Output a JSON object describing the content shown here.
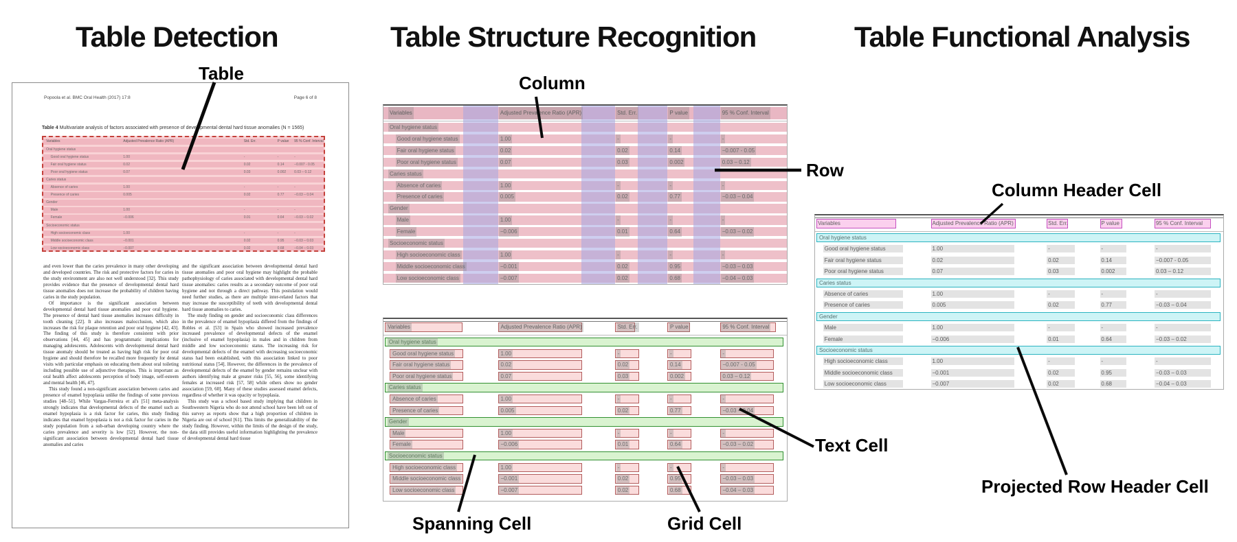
{
  "titles": {
    "detection": "Table Detection",
    "structure": "Table Structure Recognition",
    "functional": "Table Functional Analysis"
  },
  "callouts": {
    "table": "Table",
    "column": "Column",
    "row": "Row",
    "spanning_cell": "Spanning Cell",
    "text_cell": "Text Cell",
    "grid_cell": "Grid Cell",
    "column_header_cell": "Column Header Cell",
    "projected_row_header_cell": "Projected Row Header Cell"
  },
  "document": {
    "header_left": "Popoola et al. BMC Oral Health  (2017) 17:8",
    "header_right": "Page 6 of 8",
    "body_col1": [
      "and even lower than the caries prevalence in many other developing and developed countries. The risk and protective factors for caries in the study environment are also not well understood [32]. This study provides evidence that the presence of developmental dental hard tissue anomalies does not increase the probability of children having caries in the study population.",
      "Of importance is the significant association between developmental dental hard tissue anomalies and poor oral hygiene. The presence of dental hard tissue anomalies increases difficulty in tooth cleaning [22]. It also increases malocclusion, which also increases the risk for plaque retention and poor oral hygiene [42, 43]. The finding of this study is therefore consistent with prior observations [44, 45] and has programmatic implications for managing adolescents. Adolescents with developmental dental hard tissue anomaly should be treated as having high risk for poor oral hygiene and should therefore be recalled more frequently for dental visits with particular emphasis on educating them about oral toileting including possible use of adjunctive therapies. This is important as oral health affect adolescents perception of body image, self-esteem and mental health [46, 47].",
      "This study found a non-significant association between caries and presence of enamel hypoplasia unlike the findings of some previous studies [48–51]. While Vargas-Ferreira et al's [51] meta-analysis strongly indicates that developmental defects of the enamel such as enamel hypoplasia is a risk factor for caries, this study finding indicates that enamel hypoplasia is not a risk factor for caries in the study population from a sub-urban developing country where the caries prevalence and severity is low [52]. However, the non-significant association between developmental dental hard tissue anomalies and caries"
    ],
    "body_col2": [
      "and the significant association between developmental dental hard tissue anomalies and poor oral hygiene may highlight the probable pathophysiology of caries associated with developmental dental hard tissue anomalies: caries results as a secondary outcome of poor oral hygiene and not through a direct pathway. This postulation would need further studies, as there are multiple inter-related factors that may increase the susceptibility of teeth with developmental dental hard tissue anomalies to caries.",
      "The study finding on gender and socioeconomic class differences in the prevalence of enamel hypoplasia differed from the findings of Robles et al. [53] in Spain who showed increased prevalence increased prevalence of developmental defects of the enamel (inclusive of enamel hypoplasia) in males and in children from middle and low socioeconomic status. The increasing risk for developmental defects of the enamel with decreasing socioeconomic status had been established, with this association linked to poor nutritional status [54]. However, the differences in the prevalence of developmental defects of the enamel by gender remains unclear with authors identifying male at greater risks [55, 56], some identifying females at increased risk [57, 58] while others show no gender association [59, 60]. Many of these studies assessed enamel defects, regardless of whether it was opacity or hypoplasia.",
      "This study was a school based study implying that children in Southwestern Nigeria who do not attend school have been left out of this survey as reports show that a high proportion of children in Nigeria are out of school [61]. This limits the generalizability of the study finding. However, within the limits of the design of the study, the data still provides useful information highlighting the prevalence of developmental dental hard tissue"
    ]
  },
  "table": {
    "caption_label": "Table 4",
    "caption_text": "Multivariate analysis of factors associated with presence of developmental dental hard tissue anomalies (N = 1565)",
    "headers": [
      "Variables",
      "Adjusted Prevalence Ratio (APR)",
      "Std. Err.",
      "P value",
      "95 % Conf. Interval"
    ],
    "rows": [
      {
        "type": "section",
        "cells": [
          "Oral hygiene status"
        ]
      },
      {
        "type": "data",
        "cells": [
          "Good oral hygiene status",
          "1.00",
          "-",
          "-",
          "-"
        ]
      },
      {
        "type": "data",
        "cells": [
          "Fair oral hygiene status",
          "0.02",
          "0.02",
          "0.14",
          "−0.007 - 0.05"
        ]
      },
      {
        "type": "data",
        "cells": [
          "Poor oral hygiene status",
          "0.07",
          "0.03",
          "0.002",
          "0.03 – 0.12"
        ]
      },
      {
        "type": "section",
        "cells": [
          "Caries status"
        ]
      },
      {
        "type": "data",
        "cells": [
          "Absence of caries",
          "1.00",
          "-",
          "-",
          "-"
        ]
      },
      {
        "type": "data",
        "cells": [
          "Presence of caries",
          "0.005",
          "0.02",
          "0.77",
          "−0.03 – 0.04"
        ]
      },
      {
        "type": "section",
        "cells": [
          "Gender"
        ]
      },
      {
        "type": "data",
        "cells": [
          "Male",
          "1.00",
          "-",
          "-",
          "-"
        ]
      },
      {
        "type": "data",
        "cells": [
          "Female",
          "−0.006",
          "0.01",
          "0.64",
          "−0.03 – 0.02"
        ]
      },
      {
        "type": "section",
        "cells": [
          "Socioeconomic status"
        ]
      },
      {
        "type": "data",
        "cells": [
          "High socioeconomic class",
          "1.00",
          "-",
          "-",
          "-"
        ]
      },
      {
        "type": "data",
        "cells": [
          "Middle socioeconomic class",
          "−0.001",
          "0.02",
          "0.95",
          "−0.03 – 0.03"
        ]
      },
      {
        "type": "data",
        "cells": [
          "Low socioeconomic class",
          "−0.007",
          "0.02",
          "0.68",
          "−0.04 – 0.03"
        ]
      }
    ]
  },
  "colors": {
    "row_pink": "#eec0c9",
    "header_pink": "#e9b7c3",
    "column_lavender": "rgba(165,165,225,0.55)",
    "detection_fill": "#f9d3d6",
    "detection_row": "#f0b7c0",
    "detection_border": "#c4403a",
    "grid_cell_fill": "#fadcdc",
    "grid_cell_border": "#b25b5b",
    "spanning_fill": "#d9f3d0",
    "spanning_border": "#2f8f2f",
    "header_cell_fill": "#fbd0ee",
    "header_cell_border": "#c44fc0",
    "proj_row_fill": "#cdf4f6",
    "proj_row_border": "#2ab3c0",
    "value_bar_grey": "#e3e3e3"
  }
}
